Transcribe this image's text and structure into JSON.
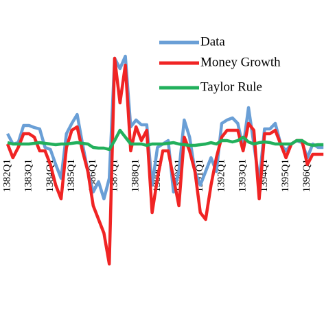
{
  "chart_data": {
    "type": "line",
    "categories": [
      "1382Q1",
      null,
      null,
      null,
      "1383Q1",
      null,
      null,
      null,
      "1384Q1",
      null,
      null,
      null,
      "1385Q1",
      null,
      null,
      null,
      "1386Q1",
      null,
      null,
      null,
      "1387Q1",
      null,
      null,
      null,
      "1388Q1",
      null,
      null,
      null,
      "1389Q1",
      null,
      null,
      null,
      "1390Q1",
      null,
      null,
      null,
      "1391Q1",
      null,
      null,
      null,
      "1392Q1",
      null,
      null,
      null,
      "1393Q1",
      null,
      null,
      null,
      "1394Q1",
      null,
      null,
      null,
      "1395Q1",
      null,
      null,
      null,
      "1396Q1",
      null,
      null,
      null
    ],
    "ylim": [
      -19,
      19
    ],
    "legend": "top-right",
    "series": [
      {
        "name": "Data",
        "color": "#6a9fd6",
        "values": [
          1.5,
          0,
          0.2,
          2.7,
          2.7,
          2.4,
          2.2,
          -0.5,
          -0.8,
          -3,
          -5,
          1.5,
          3,
          4.3,
          0,
          -4,
          -7,
          -5.5,
          -8,
          -5,
          12.5,
          11,
          12.8,
          2.5,
          3.5,
          2.8,
          2.8,
          -6,
          -0.5,
          0,
          0.5,
          -7,
          -4,
          3.5,
          1,
          -4,
          -6,
          -4,
          -2,
          -4,
          3,
          3.5,
          3.8,
          3,
          -0.5,
          5.3,
          0,
          -5.5,
          2.2,
          2.2,
          3,
          0,
          -1,
          0,
          0.5,
          0.2,
          -2,
          0,
          -0.5,
          -0.5
        ]
      },
      {
        "name": "Money Growth",
        "color": "#f02424",
        "values": [
          0,
          -2,
          -0.5,
          1.5,
          1.5,
          1,
          -1,
          -1,
          -3,
          -6,
          -8,
          -0.5,
          2,
          2.5,
          -1,
          -4,
          -9,
          -11,
          -13,
          -17.5,
          12.5,
          6,
          11.5,
          -1,
          2.5,
          0.5,
          2,
          -10,
          -5,
          -1,
          -1,
          -5,
          -9,
          1,
          -1,
          -4,
          -10,
          -11,
          -6,
          -2,
          1,
          2,
          2,
          2,
          -1,
          3,
          2,
          -8,
          1.5,
          1.5,
          2,
          0,
          -2,
          0,
          0.5,
          0.5,
          -3,
          -1.5,
          -1.5,
          -1.5
        ]
      },
      {
        "name": "Taylor Rule",
        "color": "#22b05c",
        "values": [
          0.2,
          0,
          0,
          0,
          0,
          0.1,
          0.2,
          0.1,
          0,
          -0.1,
          0,
          0,
          0.1,
          0.2,
          0.1,
          0,
          -0.5,
          -0.6,
          -0.6,
          -0.8,
          0.5,
          2,
          1,
          0,
          0,
          0,
          -0.2,
          0,
          0,
          0,
          0.1,
          0.2,
          0,
          -0.1,
          -0.2,
          -0.2,
          -0.1,
          0,
          0.2,
          0,
          0.5,
          0.5,
          0.3,
          0.5,
          1,
          0.3,
          0,
          0.2,
          0.3,
          0.2,
          0,
          0,
          0,
          0,
          0.5,
          0.5,
          0,
          -0.2,
          -0.1,
          -0.1
        ]
      }
    ]
  }
}
